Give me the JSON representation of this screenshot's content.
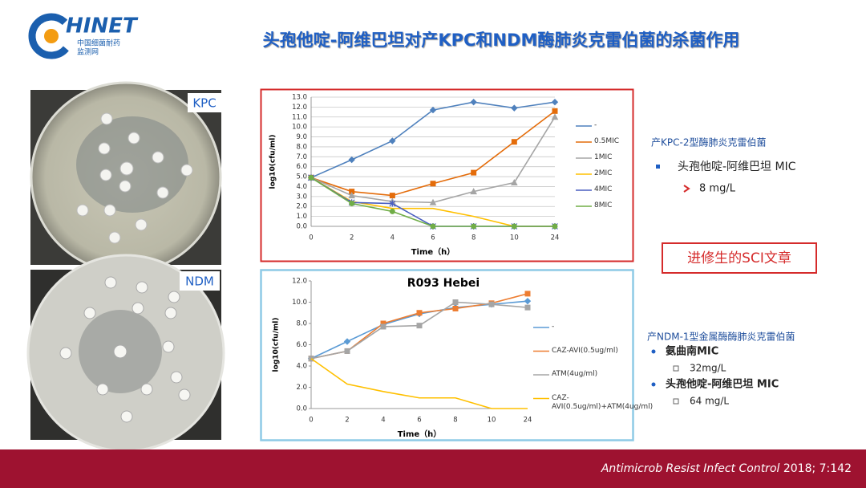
{
  "header": {
    "title": "头孢他啶-阿维巴坦对产KPC和NDM酶肺炎克雷伯菌的杀菌作用",
    "logo": "HINET",
    "logo_sub1": "中国细菌耐药",
    "logo_sub2": "监测网"
  },
  "photos": {
    "top_label": "KPC",
    "bottom_label": "NDM"
  },
  "notes": {
    "kpc_title": "产KPC-2型酶肺炎克雷伯菌",
    "kpc_drug": "头孢他啶-阿维巴坦 MIC",
    "kpc_mic": "8 mg/L",
    "box": "进修生的SCI文章",
    "ndm_title": "产NDM-1型金属酶酶肺炎克雷伯菌",
    "ndm_drug1": "氨曲南MIC",
    "ndm_mic1": "32mg/L",
    "ndm_drug2": "头孢他啶-阿维巴坦 MIC",
    "ndm_mic2": "64 mg/L"
  },
  "footer": {
    "journal": "Antimicrob Resist Infect Control",
    "citation": " 2018; 7:142"
  },
  "chart_data": [
    {
      "type": "line",
      "x_label": "Time（h）",
      "y_label": "log10(cfu/ml)",
      "grid": true,
      "categories": [
        "0",
        "2",
        "4",
        "6",
        "8",
        "10",
        "24"
      ],
      "ylim": [
        0,
        13
      ],
      "yticks": [
        {
          "value": 0,
          "label": "0.0"
        },
        {
          "value": 1,
          "label": "1.0"
        },
        {
          "value": 2,
          "label": "2.0"
        },
        {
          "value": 3,
          "label": "3.0"
        },
        {
          "value": 4,
          "label": "4.0"
        },
        {
          "value": 5,
          "label": "5.0"
        },
        {
          "value": 6,
          "label": "6.0"
        },
        {
          "value": 7,
          "label": "7.0"
        },
        {
          "value": 8,
          "label": "8.0"
        },
        {
          "value": 9,
          "label": "9.0"
        },
        {
          "value": 10,
          "label": "10.0"
        },
        {
          "value": 11,
          "label": "11.0"
        },
        {
          "value": 12,
          "label": "12.0"
        },
        {
          "value": 13,
          "label": "13.0"
        }
      ],
      "series": [
        {
          "name": "-",
          "color": "#4f81bd",
          "values": [
            4.9,
            6.7,
            8.6,
            11.7,
            12.5,
            11.9,
            12.5
          ]
        },
        {
          "name": "0.5MIC",
          "color": "#e46c0a",
          "values": [
            4.9,
            3.5,
            3.1,
            4.3,
            5.4,
            8.5,
            11.6
          ]
        },
        {
          "name": "1MIC",
          "color": "#a5a5a5",
          "values": [
            4.9,
            3.1,
            2.5,
            2.4,
            3.5,
            4.4,
            11.0
          ]
        },
        {
          "name": "2MIC",
          "color": "#ffc000",
          "values": [
            4.9,
            2.5,
            1.8,
            1.8,
            1.0,
            0,
            0
          ]
        },
        {
          "name": "4MIC",
          "color": "#4a5fc1",
          "values": [
            4.9,
            2.4,
            2.3,
            0,
            0,
            0,
            0
          ]
        },
        {
          "name": "8MIC",
          "color": "#70ad47",
          "values": [
            4.9,
            2.3,
            1.5,
            0,
            0,
            0,
            0
          ]
        }
      ]
    },
    {
      "type": "line",
      "title": "R093 Hebei",
      "x_label": "Time（h）",
      "y_label": "log10(cfu/ml)",
      "grid": false,
      "categories": [
        "0",
        "2",
        "4",
        "6",
        "8",
        "10",
        "24"
      ],
      "ylim": [
        0,
        12
      ],
      "yticks": [
        {
          "value": 0,
          "label": "0.0"
        },
        {
          "value": 2,
          "label": "2.0"
        },
        {
          "value": 4,
          "label": "4.0"
        },
        {
          "value": 6,
          "label": "6.0"
        },
        {
          "value": 8,
          "label": "8.0"
        },
        {
          "value": 10,
          "label": "10.0"
        },
        {
          "value": 12,
          "label": "12.0"
        }
      ],
      "series": [
        {
          "name": "-",
          "color": "#5b9bd5",
          "values": [
            4.7,
            6.3,
            7.9,
            8.9,
            9.5,
            9.8,
            10.1
          ]
        },
        {
          "name": "CAZ-AVI(0.5ug/ml)",
          "color": "#ed7d31",
          "values": [
            4.7,
            5.4,
            8.0,
            9.0,
            9.4,
            9.9,
            10.8
          ]
        },
        {
          "name": "ATM(4ug/ml)",
          "color": "#a5a5a5",
          "values": [
            4.7,
            5.4,
            7.7,
            7.8,
            10.0,
            9.8,
            9.5
          ]
        },
        {
          "name": "CAZ-AVI(0.5ug/ml)+ATM(4ug/ml)",
          "color": "#ffc000",
          "values": [
            4.7,
            2.3,
            1.6,
            1.0,
            1.0,
            0,
            0
          ]
        }
      ]
    }
  ]
}
